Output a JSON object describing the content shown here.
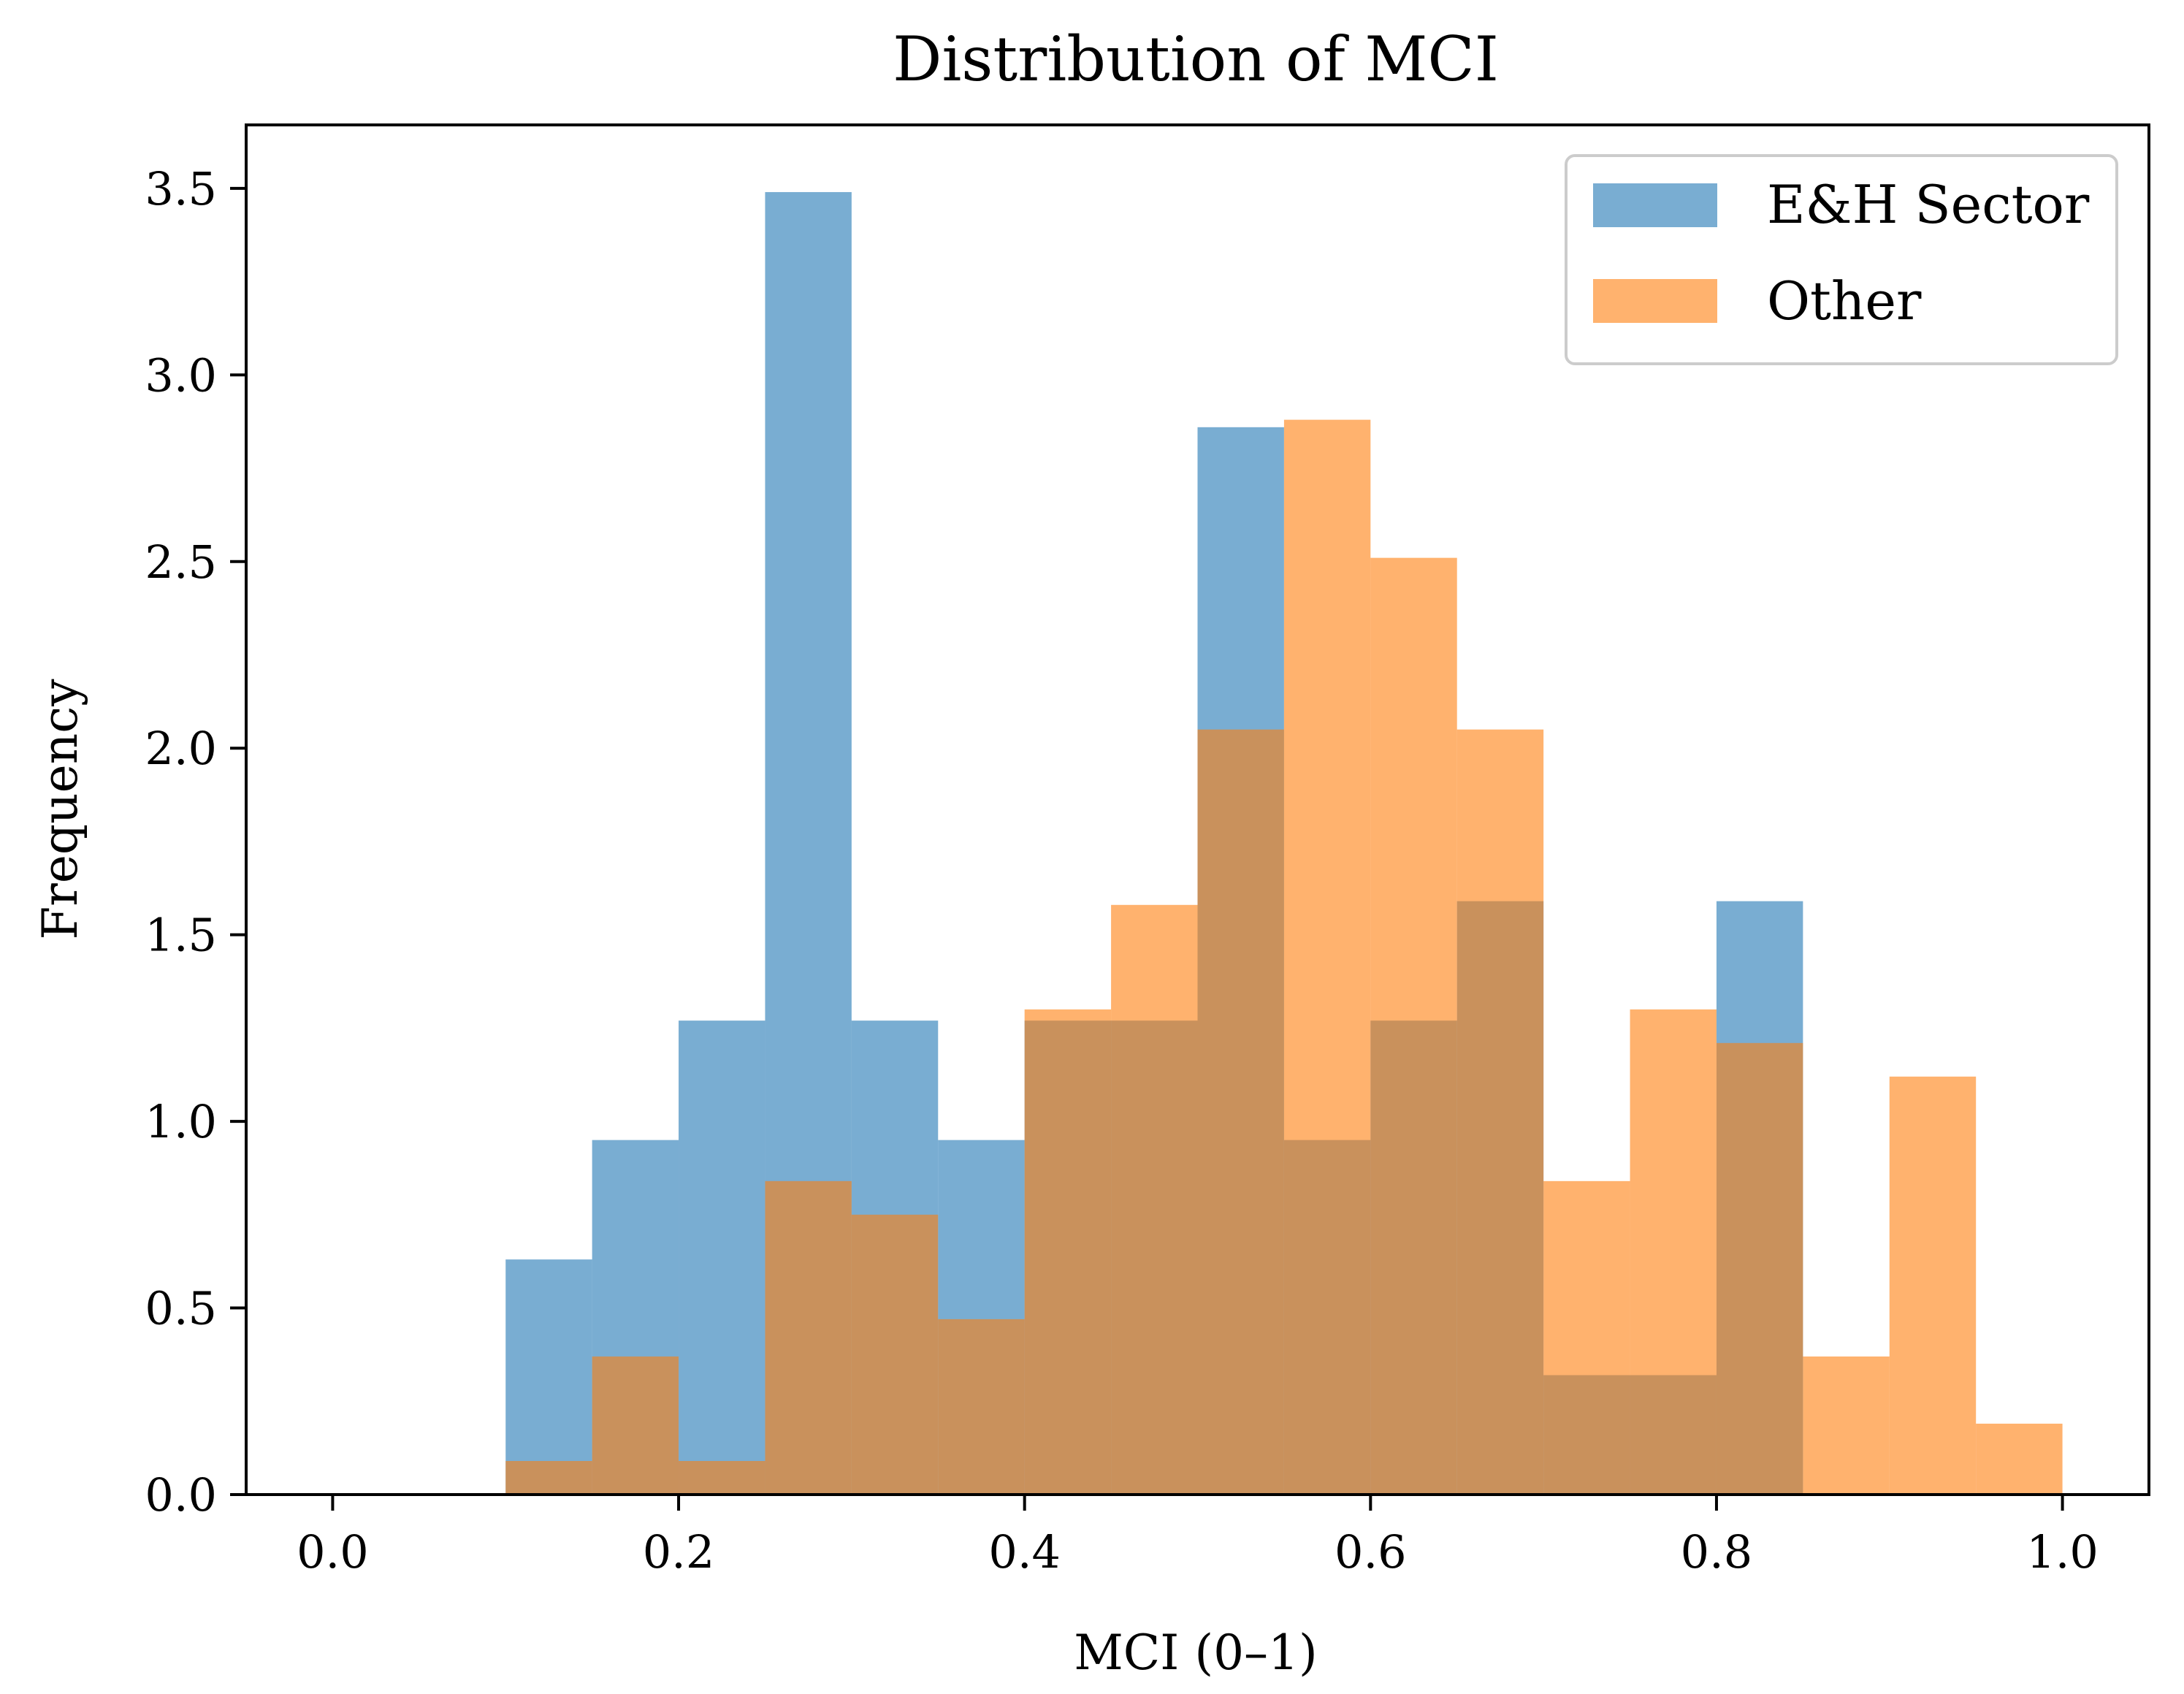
{
  "chart_data": {
    "type": "bar",
    "subtype": "overlapping-histogram",
    "title": "Distribution of MCI",
    "xlabel": "MCI (0–1)",
    "ylabel": "Frequency",
    "xlim": [
      -0.05,
      1.05
    ],
    "ylim": [
      0,
      3.67
    ],
    "bin_edges": [
      0.1,
      0.15,
      0.2,
      0.25,
      0.3,
      0.35,
      0.4,
      0.45,
      0.5,
      0.55,
      0.6,
      0.65,
      0.7,
      0.75,
      0.8,
      0.85,
      0.9,
      0.95,
      1.0
    ],
    "xticks": [
      {
        "value": 0.0,
        "label": "0.0"
      },
      {
        "value": 0.2,
        "label": "0.2"
      },
      {
        "value": 0.4,
        "label": "0.4"
      },
      {
        "value": 0.6,
        "label": "0.6"
      },
      {
        "value": 0.8,
        "label": "0.8"
      },
      {
        "value": 1.0,
        "label": "1.0"
      }
    ],
    "yticks": [
      {
        "value": 0.0,
        "label": "0.0"
      },
      {
        "value": 0.5,
        "label": "0.5"
      },
      {
        "value": 1.0,
        "label": "1.0"
      },
      {
        "value": 1.5,
        "label": "1.5"
      },
      {
        "value": 2.0,
        "label": "2.0"
      },
      {
        "value": 2.5,
        "label": "2.5"
      },
      {
        "value": 3.0,
        "label": "3.0"
      },
      {
        "value": 3.5,
        "label": "3.5"
      }
    ],
    "series": [
      {
        "name": "E&H Sector",
        "color": "#1f77b4",
        "alpha": 0.6,
        "values": [
          0.63,
          0.95,
          1.27,
          3.49,
          1.27,
          0.95,
          1.27,
          1.27,
          2.86,
          0.95,
          1.27,
          1.59,
          0.32,
          0.32,
          1.59,
          0,
          0,
          0
        ]
      },
      {
        "name": "Other",
        "color": "#ff7f0e",
        "alpha": 0.6,
        "values": [
          0.09,
          0.37,
          0.09,
          0.84,
          0.75,
          0.47,
          1.3,
          1.58,
          2.05,
          2.88,
          2.51,
          2.05,
          0.84,
          1.3,
          1.21,
          0.37,
          1.12,
          0.19
        ]
      }
    ],
    "legend": {
      "location": "top-right",
      "entries": [
        "E&H Sector",
        "Other"
      ]
    }
  }
}
